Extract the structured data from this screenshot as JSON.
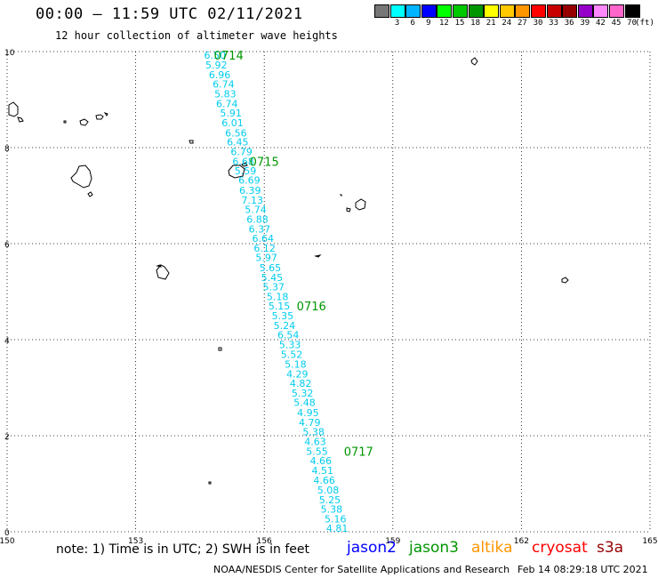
{
  "header": {
    "title": "00:00 – 11:59 UTC 02/11/2021",
    "subtitle": "12 hour collection of altimeter wave heights"
  },
  "colorbar": {
    "colors": [
      "#777777",
      "#00ffff",
      "#00b4ff",
      "#0000ff",
      "#00ff00",
      "#00c800",
      "#009600",
      "#ffff00",
      "#ffc800",
      "#ff9600",
      "#ff0000",
      "#c80000",
      "#960000",
      "#9600c8",
      "#ff88ff",
      "#ff66cc",
      "#000000"
    ],
    "labels": [
      "3",
      "6",
      "9",
      "12",
      "15",
      "18",
      "21",
      "24",
      "27",
      "30",
      "33",
      "36",
      "39",
      "42",
      "45",
      "70"
    ],
    "unit": "(ft)"
  },
  "map": {
    "xlim": [
      150,
      165
    ],
    "ylim": [
      0,
      10
    ],
    "x_ticks": [
      "150",
      "153",
      "156",
      "159",
      "162",
      "165"
    ],
    "y_ticks": [
      "0",
      "2",
      "4",
      "6",
      "8",
      "10"
    ],
    "grid": "dotted",
    "track_color": "#00ccee",
    "track": [
      {
        "lon": 154.85,
        "lat": 9.93,
        "swh": "6.50"
      },
      {
        "lon": 154.88,
        "lat": 9.72,
        "swh": "5.92"
      },
      {
        "lon": 154.96,
        "lat": 9.52,
        "swh": "6.96"
      },
      {
        "lon": 155.05,
        "lat": 9.32,
        "swh": "6.74"
      },
      {
        "lon": 155.09,
        "lat": 9.12,
        "swh": "5.83"
      },
      {
        "lon": 155.13,
        "lat": 8.92,
        "swh": "6.74"
      },
      {
        "lon": 155.22,
        "lat": 8.72,
        "swh": "5.91"
      },
      {
        "lon": 155.26,
        "lat": 8.52,
        "swh": "6.01"
      },
      {
        "lon": 155.34,
        "lat": 8.31,
        "swh": "6.56"
      },
      {
        "lon": 155.38,
        "lat": 8.12,
        "swh": "6.45"
      },
      {
        "lon": 155.47,
        "lat": 7.92,
        "swh": "6.79"
      },
      {
        "lon": 155.51,
        "lat": 7.71,
        "swh": "6.68"
      },
      {
        "lon": 155.56,
        "lat": 7.52,
        "swh": "5.59"
      },
      {
        "lon": 155.65,
        "lat": 7.32,
        "swh": "6.69"
      },
      {
        "lon": 155.67,
        "lat": 7.11,
        "swh": "6.39"
      },
      {
        "lon": 155.72,
        "lat": 6.91,
        "swh": "7.13"
      },
      {
        "lon": 155.8,
        "lat": 6.71,
        "swh": "5.74"
      },
      {
        "lon": 155.84,
        "lat": 6.51,
        "swh": "6.88"
      },
      {
        "lon": 155.89,
        "lat": 6.31,
        "swh": "6.37"
      },
      {
        "lon": 155.97,
        "lat": 6.11,
        "swh": "6.64"
      },
      {
        "lon": 156.01,
        "lat": 5.91,
        "swh": "6.12"
      },
      {
        "lon": 156.05,
        "lat": 5.71,
        "swh": "5.97"
      },
      {
        "lon": 156.14,
        "lat": 5.5,
        "swh": "5.65"
      },
      {
        "lon": 156.18,
        "lat": 5.3,
        "swh": "5.45"
      },
      {
        "lon": 156.22,
        "lat": 5.1,
        "swh": "5.37"
      },
      {
        "lon": 156.31,
        "lat": 4.9,
        "swh": "5.18"
      },
      {
        "lon": 156.35,
        "lat": 4.7,
        "swh": "5.15"
      },
      {
        "lon": 156.43,
        "lat": 4.5,
        "swh": "5.35"
      },
      {
        "lon": 156.47,
        "lat": 4.3,
        "swh": "5.24"
      },
      {
        "lon": 156.56,
        "lat": 4.1,
        "swh": "6.54"
      },
      {
        "lon": 156.6,
        "lat": 3.9,
        "swh": "5.33"
      },
      {
        "lon": 156.64,
        "lat": 3.69,
        "swh": "5.52"
      },
      {
        "lon": 156.73,
        "lat": 3.49,
        "swh": "5.18"
      },
      {
        "lon": 156.77,
        "lat": 3.29,
        "swh": "4.29"
      },
      {
        "lon": 156.85,
        "lat": 3.09,
        "swh": "4.82"
      },
      {
        "lon": 156.89,
        "lat": 2.89,
        "swh": "5.32"
      },
      {
        "lon": 156.94,
        "lat": 2.69,
        "swh": "5.48"
      },
      {
        "lon": 157.02,
        "lat": 2.48,
        "swh": "4.95"
      },
      {
        "lon": 157.06,
        "lat": 2.28,
        "swh": "4.79"
      },
      {
        "lon": 157.15,
        "lat": 2.08,
        "swh": "5.38"
      },
      {
        "lon": 157.19,
        "lat": 1.88,
        "swh": "4.63"
      },
      {
        "lon": 157.23,
        "lat": 1.68,
        "swh": "5.55"
      },
      {
        "lon": 157.32,
        "lat": 1.48,
        "swh": "4.66"
      },
      {
        "lon": 157.36,
        "lat": 1.28,
        "swh": "4.51"
      },
      {
        "lon": 157.4,
        "lat": 1.07,
        "swh": "4.66"
      },
      {
        "lon": 157.49,
        "lat": 0.87,
        "swh": "5.08"
      },
      {
        "lon": 157.53,
        "lat": 0.67,
        "swh": "5.25"
      },
      {
        "lon": 157.57,
        "lat": 0.47,
        "swh": "5.38"
      },
      {
        "lon": 157.66,
        "lat": 0.27,
        "swh": "5.16"
      },
      {
        "lon": 157.7,
        "lat": 0.07,
        "swh": "4.81"
      }
    ],
    "time_labels": [
      {
        "lon": 155.17,
        "lat": 9.93,
        "text": "0714"
      },
      {
        "lon": 156.0,
        "lat": 7.71,
        "text": "0715"
      },
      {
        "lon": 157.1,
        "lat": 4.7,
        "text": "0716"
      },
      {
        "lon": 158.2,
        "lat": 1.68,
        "text": "0717"
      }
    ],
    "time_label_color": "#009600"
  },
  "footer": {
    "note": "note:  1) Time is in UTC;  2) SWH is in feet",
    "legend": [
      {
        "name": "jason2",
        "color": "#0000ff"
      },
      {
        "name": "jason3",
        "color": "#009600"
      },
      {
        "name": "altika",
        "color": "#ff9600"
      },
      {
        "name": "cryosat",
        "color": "#ff0000"
      },
      {
        "name": "s3a",
        "color": "#960000"
      }
    ],
    "credit": "NOAA/NESDIS Center for Satellite Applications and Research",
    "timestamp": "Feb 14 08:29:18 UTC 2021"
  }
}
